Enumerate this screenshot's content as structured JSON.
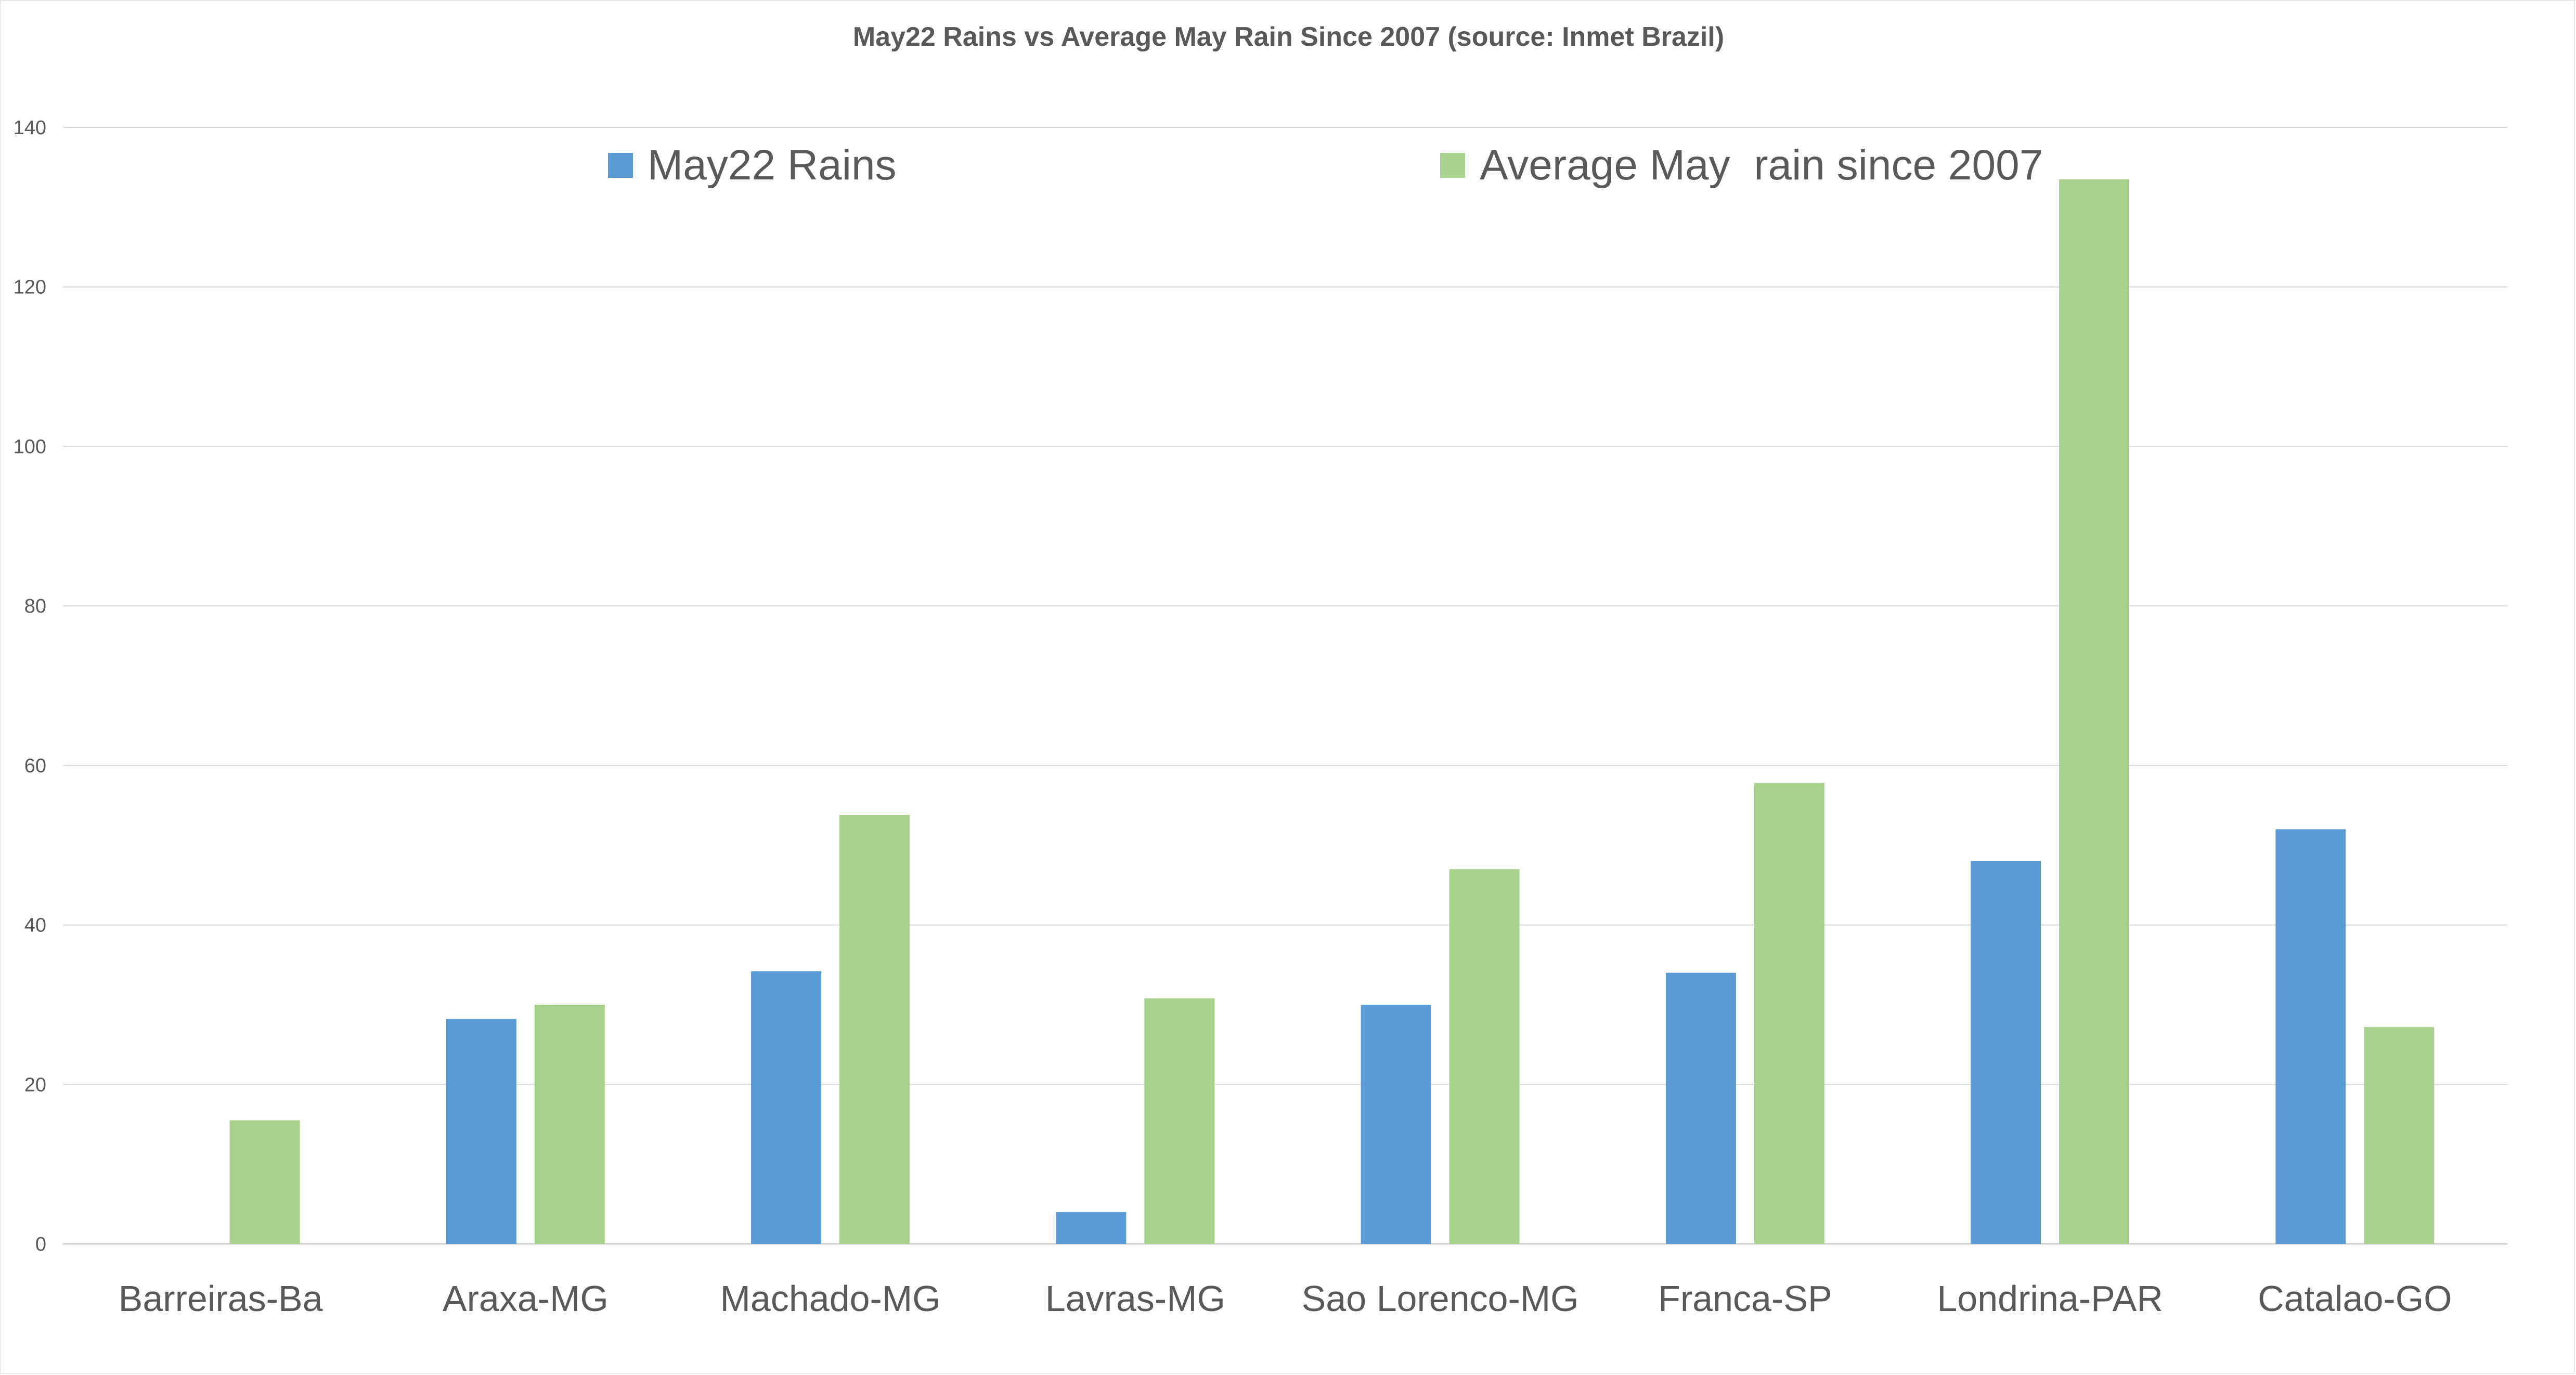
{
  "chart_data": {
    "type": "bar",
    "title": "May22 Rains vs Average May Rain Since 2007 (source: Inmet Brazil)",
    "xlabel": "",
    "ylabel": "",
    "categories": [
      "Barreiras-Ba",
      "Araxa-MG",
      "Machado-MG",
      "Lavras-MG",
      "Sao Lorenco-MG",
      "Franca-SP",
      "Londrina-PAR",
      "Catalao-GO"
    ],
    "series": [
      {
        "name": "May22 Rains",
        "color": "#5b9bd5",
        "values": [
          0,
          28.2,
          34.2,
          4.0,
          30.0,
          34.0,
          48.0,
          52.0
        ]
      },
      {
        "name": "Average May  rain since 2007",
        "color": "#a9d18e",
        "values": [
          15.5,
          30.0,
          53.8,
          30.8,
          47.0,
          57.8,
          133.5,
          27.2
        ]
      }
    ],
    "ylim": [
      0,
      140
    ],
    "yticks": [
      0,
      20,
      40,
      60,
      80,
      100,
      120,
      140
    ],
    "grid": true,
    "legend_position": "top"
  }
}
